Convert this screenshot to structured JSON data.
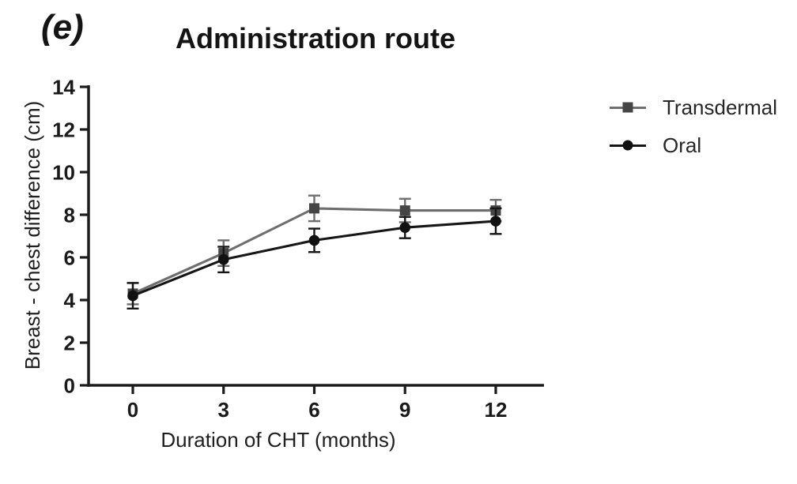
{
  "figure": {
    "panel_label": "(e)"
  },
  "chart_data": {
    "type": "line",
    "title": "Administration route",
    "xlabel": "Duration of CHT (months)",
    "ylabel": "Breast - chest difference (cm)",
    "x": [
      0,
      3,
      6,
      9,
      12
    ],
    "xticks": [
      0,
      3,
      6,
      9,
      12
    ],
    "yticks": [
      0,
      2,
      4,
      6,
      8,
      10,
      12,
      14
    ],
    "xlim": [
      0,
      12
    ],
    "ylim": [
      0,
      14
    ],
    "grid": false,
    "legend_position": "right",
    "axis_color": "#1b1b1b",
    "series": [
      {
        "name": "Transdermal",
        "marker": "square",
        "line_color": "#6e6e6e",
        "marker_color": "#454545",
        "values": [
          4.3,
          6.2,
          8.3,
          8.2,
          8.2
        ],
        "errors": [
          0.5,
          0.6,
          0.6,
          0.55,
          0.5
        ]
      },
      {
        "name": "Oral",
        "marker": "circle",
        "line_color": "#161616",
        "marker_color": "#111111",
        "values": [
          4.2,
          5.9,
          6.8,
          7.4,
          7.7
        ],
        "errors": [
          0.6,
          0.6,
          0.55,
          0.5,
          0.6
        ]
      }
    ]
  }
}
